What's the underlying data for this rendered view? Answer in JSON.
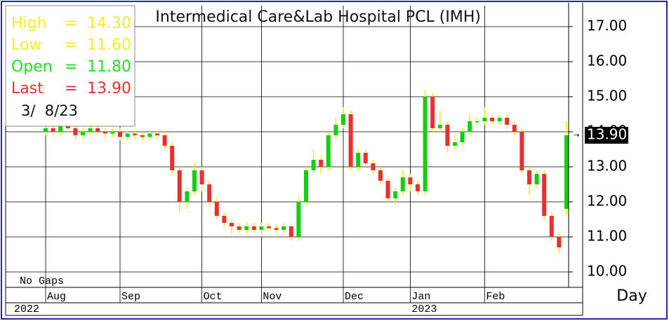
{
  "chart_data": {
    "type": "candlestick",
    "title": "Intermedical Care&Lab Hospital PCL (IMH)",
    "categories": [
      "Aug",
      null,
      null,
      null,
      null,
      null,
      null,
      null,
      null,
      null,
      "Sep",
      null,
      null,
      null,
      null,
      null,
      null,
      null,
      null,
      null,
      null,
      "Oct",
      null,
      null,
      null,
      null,
      null,
      null,
      null,
      "Nov",
      null,
      null,
      null,
      null,
      null,
      null,
      null,
      null,
      null,
      null,
      "Dec",
      null,
      null,
      null,
      null,
      null,
      null,
      null,
      null,
      "Jan",
      null,
      null,
      null,
      null,
      null,
      null,
      null,
      null,
      null,
      "Feb",
      null,
      null,
      null,
      null,
      null,
      null,
      null,
      null,
      null,
      null,
      null
    ],
    "open": [
      14.0,
      14.1,
      14.0,
      14.2,
      14.1,
      13.9,
      14.0,
      14.1,
      14.0,
      13.95,
      14.0,
      13.85,
      13.95,
      13.9,
      13.85,
      13.95,
      13.9,
      13.6,
      12.9,
      12.0,
      12.3,
      12.9,
      12.5,
      12.0,
      11.6,
      11.4,
      11.3,
      11.2,
      11.3,
      11.2,
      11.3,
      11.25,
      11.2,
      11.3,
      11.0,
      12.0,
      12.9,
      13.2,
      13.0,
      13.9,
      14.2,
      14.5,
      13.0,
      13.4,
      13.1,
      12.9,
      12.6,
      12.1,
      12.3,
      12.7,
      12.5,
      12.3,
      15.0,
      14.1,
      14.2,
      13.6,
      13.7,
      14.0,
      14.3,
      14.3,
      14.4,
      14.3,
      14.4,
      14.2,
      14.0,
      12.9,
      12.5,
      12.8,
      11.6,
      11.0,
      11.8
    ],
    "high": [
      14.2,
      14.2,
      14.3,
      14.3,
      14.2,
      14.1,
      14.2,
      14.2,
      14.1,
      14.1,
      14.1,
      14.05,
      14.05,
      14.0,
      14.05,
      14.05,
      14.0,
      13.7,
      13.0,
      12.4,
      13.1,
      13.0,
      12.6,
      12.1,
      11.7,
      11.5,
      11.4,
      11.4,
      11.4,
      11.4,
      11.4,
      11.35,
      11.4,
      11.4,
      12.1,
      13.0,
      13.5,
      13.3,
      14.0,
      14.4,
      14.7,
      14.6,
      13.5,
      13.5,
      13.2,
      13.0,
      12.7,
      12.4,
      12.9,
      12.8,
      12.6,
      15.2,
      15.1,
      14.6,
      14.3,
      13.9,
      14.1,
      14.5,
      14.4,
      14.7,
      14.5,
      14.5,
      14.5,
      14.3,
      14.1,
      13.0,
      12.9,
      12.9,
      11.7,
      11.1,
      14.3
    ],
    "low": [
      13.9,
      13.9,
      13.9,
      14.0,
      13.8,
      13.8,
      13.9,
      13.9,
      13.85,
      13.85,
      13.75,
      13.75,
      13.8,
      13.75,
      13.75,
      13.8,
      13.5,
      12.8,
      11.7,
      11.8,
      12.2,
      12.3,
      11.9,
      11.5,
      11.3,
      11.1,
      11.1,
      11.1,
      11.1,
      11.0,
      11.15,
      11.1,
      11.1,
      10.9,
      10.9,
      11.9,
      12.8,
      12.8,
      12.9,
      13.8,
      14.1,
      12.9,
      12.9,
      13.0,
      12.8,
      12.5,
      12.0,
      11.9,
      12.2,
      12.3,
      12.2,
      12.2,
      14.0,
      14.0,
      13.4,
      13.5,
      13.6,
      13.9,
      14.2,
      14.2,
      14.2,
      14.2,
      14.1,
      13.9,
      12.8,
      12.2,
      12.4,
      11.5,
      10.9,
      10.5,
      11.6
    ],
    "close": [
      14.1,
      14.0,
      14.2,
      14.1,
      13.9,
      14.0,
      14.1,
      14.0,
      13.95,
      14.0,
      13.85,
      13.95,
      13.9,
      13.85,
      13.95,
      13.9,
      13.6,
      12.9,
      12.0,
      12.3,
      12.9,
      12.5,
      12.0,
      11.6,
      11.4,
      11.3,
      11.2,
      11.3,
      11.2,
      11.3,
      11.25,
      11.2,
      11.3,
      11.0,
      12.0,
      12.9,
      13.2,
      13.0,
      13.9,
      14.2,
      14.5,
      13.0,
      13.4,
      13.1,
      12.9,
      12.6,
      12.1,
      12.3,
      12.7,
      12.5,
      12.3,
      15.0,
      14.1,
      14.2,
      13.6,
      13.7,
      14.0,
      14.3,
      14.3,
      14.4,
      14.3,
      14.4,
      14.2,
      14.0,
      12.9,
      12.5,
      12.8,
      11.6,
      11.0,
      10.7,
      13.9
    ],
    "up_color": "#10d010",
    "down_color": "#e83030",
    "wick_color": "#f0f000",
    "ylim": [
      9.56,
      17.6
    ],
    "yticks": [
      {
        "value": 10,
        "label": "10.00"
      },
      {
        "value": 11,
        "label": "11.00"
      },
      {
        "value": 12,
        "label": "12.00"
      },
      {
        "value": 13,
        "label": "13.00"
      },
      {
        "value": 14,
        "label": "14.00"
      },
      {
        "value": 15,
        "label": "15.00"
      },
      {
        "value": 16,
        "label": "16.00"
      },
      {
        "value": 17,
        "label": "17.00"
      }
    ],
    "grid": true,
    "last_label": "13.90",
    "year_labels": [
      "2022",
      "2023"
    ],
    "gap_note": "No Gaps",
    "period": "Day",
    "info": {
      "rows": [
        {
          "label": "High",
          "eq": "=",
          "value": "14.30",
          "color": "#f0f020"
        },
        {
          "label": "Low",
          "eq": "=",
          "value": "11.60",
          "color": "#f0f020"
        },
        {
          "label": "Open",
          "eq": "=",
          "value": "11.80",
          "color": "#20e020"
        },
        {
          "label": "Last",
          "eq": "=",
          "value": "13.90",
          "color": "#e83030"
        }
      ],
      "date": "3/  8/23"
    }
  }
}
